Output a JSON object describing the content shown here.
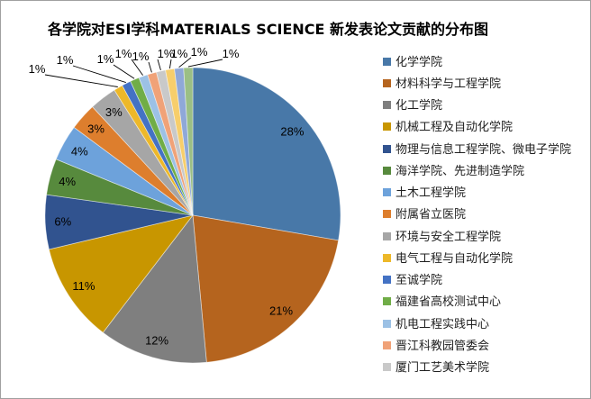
{
  "frame": {
    "background": "#FFFFFF",
    "border_color": "#A0A0A0"
  },
  "title": {
    "text": "各学院对ESI学科MATERIALS SCIENCE 新发表论文贡献的分布图"
  },
  "chart_data": {
    "type": "pie",
    "title": "各学院对ESI学科MATERIALS SCIENCE 新发表论文贡献的分布图",
    "legend_position": "right",
    "label_format": "percent",
    "slices": [
      {
        "label": "化学学院",
        "display": "28%",
        "value": 28,
        "color": "#4878A8",
        "in_legend": true
      },
      {
        "label": "材料科学与工程学院",
        "display": "21%",
        "value": 21,
        "color": "#B5641E",
        "in_legend": true
      },
      {
        "label": "化工学院",
        "display": "12%",
        "value": 12,
        "color": "#7F7F7F",
        "in_legend": true
      },
      {
        "label": "机械工程及自动化学院",
        "display": "11%",
        "value": 11,
        "color": "#C89600",
        "in_legend": true
      },
      {
        "label": "物理与信息工程学院、微电子学院",
        "display": "6%",
        "value": 6,
        "color": "#31538F",
        "in_legend": true
      },
      {
        "label": "海洋学院、先进制造学院",
        "display": "4%",
        "value": 4,
        "color": "#578A3D",
        "in_legend": true
      },
      {
        "label": "土木工程学院",
        "display": "4%",
        "value": 4,
        "color": "#6DA2DB",
        "in_legend": true
      },
      {
        "label": "附属省立医院",
        "display": "3%",
        "value": 3,
        "color": "#DD7E2D",
        "in_legend": true
      },
      {
        "label": "环境与安全工程学院",
        "display": "3%",
        "value": 3,
        "color": "#A6A6A6",
        "in_legend": true
      },
      {
        "label": "电气工程与自动化学院",
        "display": "1%",
        "value": 1,
        "color": "#EDB829",
        "in_legend": true
      },
      {
        "label": "至诚学院",
        "display": "1%",
        "value": 1,
        "color": "#4472C4",
        "in_legend": true
      },
      {
        "label": "福建省高校测试中心",
        "display": "1%",
        "value": 1,
        "color": "#70AD47",
        "in_legend": true
      },
      {
        "label": "机电工程实践中心",
        "display": "1%",
        "value": 1,
        "color": "#9CC1E5",
        "in_legend": true
      },
      {
        "label": "晋江科教园管委会",
        "display": "1%",
        "value": 1,
        "color": "#F0A278",
        "in_legend": true
      },
      {
        "label": "厦门工艺美术学院",
        "display": "1%",
        "value": 1,
        "color": "#C9C9C9",
        "in_legend": true
      },
      {
        "label": "",
        "display": "1%",
        "value": 1,
        "color": "#F7CE6B",
        "in_legend": false
      },
      {
        "label": "",
        "display": "1%",
        "value": 1,
        "color": "#8FA8D8",
        "in_legend": false
      },
      {
        "label": "",
        "display": "1%",
        "value": 1,
        "color": "#9BBF85",
        "in_legend": false
      }
    ]
  }
}
